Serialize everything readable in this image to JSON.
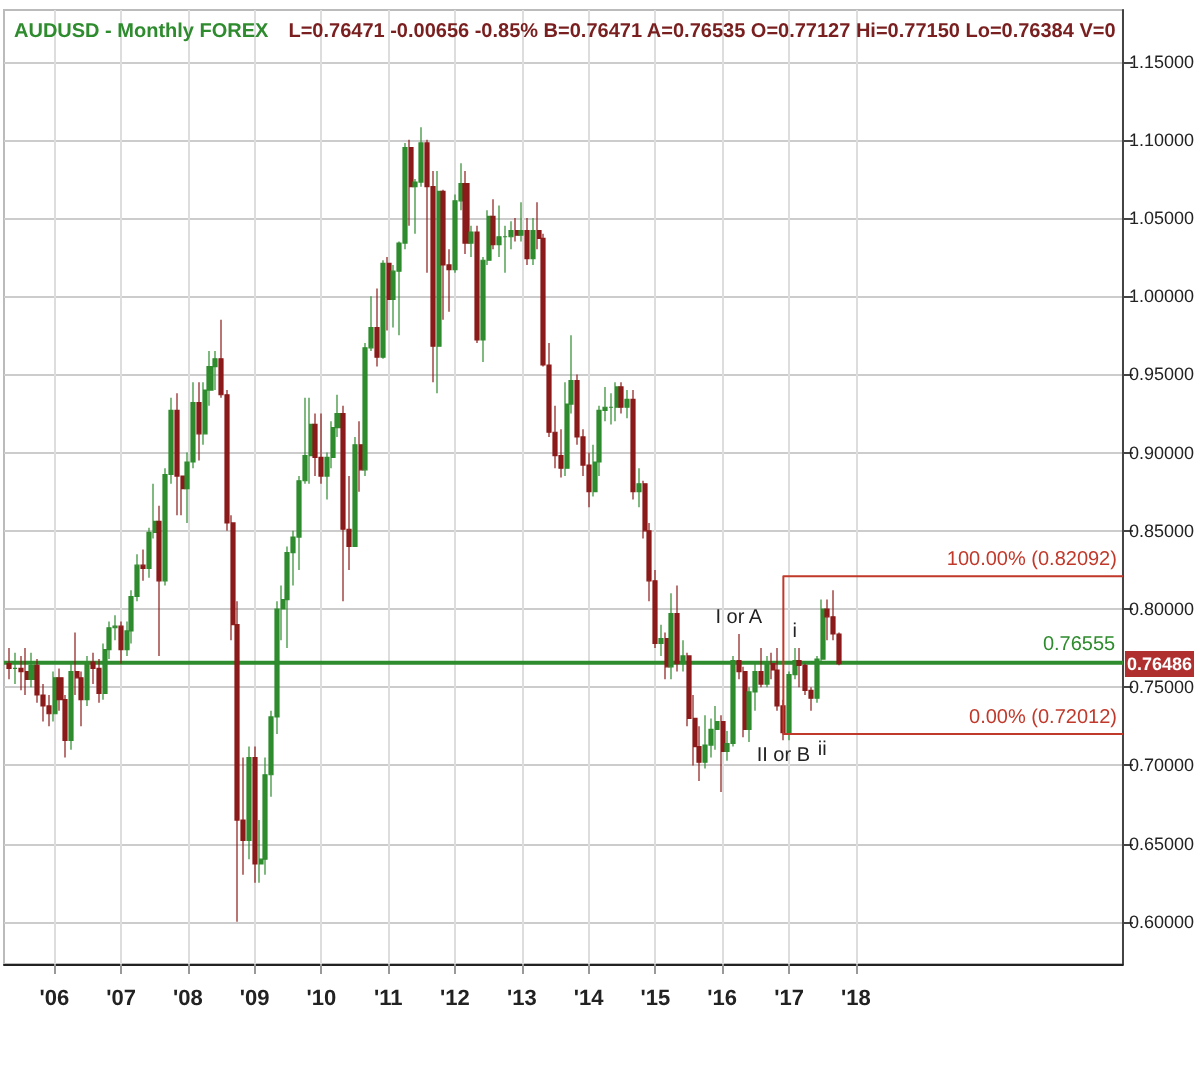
{
  "chart_data": {
    "type": "candlestick",
    "title": "AUDUSD - Monthly FOREX",
    "subtitle": "L=0.76471 -0.00656 -0.85% B=0.76471 A=0.76535 O=0.77127 Hi=0.77150 Lo=0.76384 V=0",
    "xlim": [
      "2005-04",
      "2022-01"
    ],
    "xticks": [
      {
        "value": "2006-01",
        "label": "'06"
      },
      {
        "value": "2007-01",
        "label": "'07"
      },
      {
        "value": "2008-01",
        "label": "'08"
      },
      {
        "value": "2009-01",
        "label": "'09"
      },
      {
        "value": "2010-01",
        "label": "'10"
      },
      {
        "value": "2011-01",
        "label": "'11"
      },
      {
        "value": "2012-01",
        "label": "'12"
      },
      {
        "value": "2013-01",
        "label": "'13"
      },
      {
        "value": "2014-01",
        "label": "'14"
      },
      {
        "value": "2015-01",
        "label": "'15"
      },
      {
        "value": "2016-01",
        "label": "'16"
      },
      {
        "value": "2017-01",
        "label": "'17"
      },
      {
        "value": "2018-01",
        "label": "'18"
      }
    ],
    "ylim": [
      0.573,
      1.183
    ],
    "yticks": [
      {
        "value": 0.6,
        "label": "0.60000"
      },
      {
        "value": 0.65,
        "label": "0.65000"
      },
      {
        "value": 0.7,
        "label": "0.70000"
      },
      {
        "value": 0.75,
        "label": "0.75000"
      },
      {
        "value": 0.8,
        "label": "0.80000"
      },
      {
        "value": 0.85,
        "label": "0.85000"
      },
      {
        "value": 0.9,
        "label": "0.90000"
      },
      {
        "value": 0.95,
        "label": "0.95000"
      },
      {
        "value": 1.0,
        "label": "1.00000"
      },
      {
        "value": 1.05,
        "label": "1.05000"
      },
      {
        "value": 1.1,
        "label": "1.10000"
      },
      {
        "value": 1.15,
        "label": "1.15000"
      }
    ],
    "grid": true,
    "ref_lines": [
      {
        "axis": "y",
        "value": 0.76555,
        "label": "0.76555",
        "color": "#2e8b2e"
      }
    ],
    "annotations": [
      {
        "text": "100.00% (0.82092)",
        "x": "2022-01",
        "y": 0.82092
      },
      {
        "text": "0.00% (0.72012)",
        "x": "2022-01",
        "y": 0.72012
      },
      {
        "text": "I or A",
        "x": "2016-04",
        "y": 0.784
      },
      {
        "text": "II or B",
        "x": "2016-12",
        "y": 0.716
      },
      {
        "text": "i",
        "x": "2017-02",
        "y": 0.775
      },
      {
        "text": "ii",
        "x": "2017-07",
        "y": 0.72012
      },
      {
        "text": "0.76486",
        "y": 0.76486
      }
    ],
    "series": [
      {
        "x": [
          "2005-05",
          "2005-06",
          "2005-07",
          "2005-08",
          "2005-09",
          "2005-10",
          "2005-11",
          "2005-12",
          "2006-01",
          "2006-02",
          "2006-03",
          "2006-04",
          "2006-05",
          "2006-06",
          "2006-07",
          "2006-08",
          "2006-09",
          "2006-10",
          "2006-11",
          "2006-12",
          "2007-01",
          "2007-02",
          "2007-03",
          "2007-04",
          "2007-05",
          "2007-06",
          "2007-07",
          "2007-08",
          "2007-09",
          "2007-10",
          "2007-11",
          "2007-12",
          "2008-01",
          "2008-02",
          "2008-03",
          "2008-04",
          "2008-05",
          "2008-06",
          "2008-07",
          "2008-08",
          "2008-09",
          "2008-10",
          "2008-11",
          "2008-12",
          "2009-01",
          "2009-02",
          "2009-03",
          "2009-04",
          "2009-05",
          "2009-06",
          "2009-07",
          "2009-08",
          "2009-09",
          "2009-10",
          "2009-11",
          "2009-12",
          "2010-01",
          "2010-02",
          "2010-03",
          "2010-04",
          "2010-05",
          "2010-06",
          "2010-07",
          "2010-08",
          "2010-09",
          "2010-10",
          "2010-11",
          "2010-12",
          "2011-01",
          "2011-02",
          "2011-03",
          "2011-04",
          "2011-05",
          "2011-06",
          "2011-07",
          "2011-08",
          "2011-09",
          "2011-10",
          "2011-11",
          "2011-12",
          "2012-01",
          "2012-02",
          "2012-03",
          "2012-04",
          "2012-05",
          "2012-06",
          "2012-07",
          "2012-08",
          "2012-09",
          "2012-10",
          "2012-11",
          "2012-12",
          "2013-01",
          "2013-02",
          "2013-03",
          "2013-04",
          "2013-05",
          "2013-06",
          "2013-07",
          "2013-08",
          "2013-09",
          "2013-10",
          "2013-11",
          "2013-12",
          "2014-01",
          "2014-02",
          "2014-03",
          "2014-04",
          "2014-05",
          "2014-06",
          "2014-07",
          "2014-08",
          "2014-09",
          "2014-10",
          "2014-11",
          "2014-12",
          "2015-01",
          "2015-02",
          "2015-03",
          "2015-04",
          "2015-05",
          "2015-06",
          "2015-07",
          "2015-08",
          "2015-09",
          "2015-10",
          "2015-11",
          "2015-12",
          "2016-01",
          "2016-02",
          "2016-03",
          "2016-04",
          "2016-05",
          "2016-06",
          "2016-07",
          "2016-08",
          "2016-09",
          "2016-10",
          "2016-11",
          "2016-12",
          "2017-01",
          "2017-02",
          "2017-03",
          "2017-04",
          "2017-05",
          "2017-06",
          "2017-07",
          "2017-08",
          "2017-09",
          "2017-10"
        ],
        "ohlc": [
          [
            0.765,
            0.775,
            0.755,
            0.762
          ],
          [
            0.762,
            0.772,
            0.752,
            0.762
          ],
          [
            0.762,
            0.77,
            0.748,
            0.76
          ],
          [
            0.76,
            0.775,
            0.745,
            0.755
          ],
          [
            0.755,
            0.772,
            0.75,
            0.764
          ],
          [
            0.764,
            0.768,
            0.74,
            0.745
          ],
          [
            0.745,
            0.752,
            0.728,
            0.738
          ],
          [
            0.738,
            0.745,
            0.725,
            0.733
          ],
          [
            0.733,
            0.76,
            0.728,
            0.756
          ],
          [
            0.756,
            0.762,
            0.735,
            0.742
          ],
          [
            0.742,
            0.745,
            0.705,
            0.716
          ],
          [
            0.716,
            0.765,
            0.71,
            0.76
          ],
          [
            0.76,
            0.785,
            0.745,
            0.756
          ],
          [
            0.756,
            0.76,
            0.725,
            0.742
          ],
          [
            0.742,
            0.77,
            0.738,
            0.766
          ],
          [
            0.766,
            0.772,
            0.752,
            0.762
          ],
          [
            0.762,
            0.768,
            0.74,
            0.746
          ],
          [
            0.746,
            0.778,
            0.742,
            0.774
          ],
          [
            0.774,
            0.792,
            0.768,
            0.788
          ],
          [
            0.788,
            0.796,
            0.78,
            0.789
          ],
          [
            0.789,
            0.792,
            0.765,
            0.774
          ],
          [
            0.774,
            0.792,
            0.77,
            0.786
          ],
          [
            0.786,
            0.812,
            0.778,
            0.808
          ],
          [
            0.808,
            0.835,
            0.805,
            0.828
          ],
          [
            0.828,
            0.838,
            0.818,
            0.826
          ],
          [
            0.826,
            0.852,
            0.82,
            0.849
          ],
          [
            0.849,
            0.88,
            0.845,
            0.856
          ],
          [
            0.856,
            0.866,
            0.77,
            0.818
          ],
          [
            0.818,
            0.89,
            0.815,
            0.886
          ],
          [
            0.886,
            0.935,
            0.88,
            0.927
          ],
          [
            0.927,
            0.938,
            0.86,
            0.885
          ],
          [
            0.885,
            0.885,
            0.86,
            0.877
          ],
          [
            0.877,
            0.9,
            0.855,
            0.894
          ],
          [
            0.894,
            0.945,
            0.89,
            0.932
          ],
          [
            0.932,
            0.945,
            0.895,
            0.912
          ],
          [
            0.912,
            0.945,
            0.905,
            0.94
          ],
          [
            0.94,
            0.965,
            0.93,
            0.955
          ],
          [
            0.955,
            0.965,
            0.94,
            0.96
          ],
          [
            0.96,
            0.985,
            0.935,
            0.937
          ],
          [
            0.937,
            0.94,
            0.85,
            0.855
          ],
          [
            0.855,
            0.86,
            0.78,
            0.79
          ],
          [
            0.79,
            0.805,
            0.6,
            0.665
          ],
          [
            0.665,
            0.705,
            0.63,
            0.652
          ],
          [
            0.652,
            0.712,
            0.64,
            0.705
          ],
          [
            0.705,
            0.712,
            0.625,
            0.637
          ],
          [
            0.637,
            0.665,
            0.625,
            0.64
          ],
          [
            0.64,
            0.705,
            0.63,
            0.694
          ],
          [
            0.694,
            0.735,
            0.68,
            0.731
          ],
          [
            0.731,
            0.805,
            0.72,
            0.8
          ],
          [
            0.8,
            0.815,
            0.78,
            0.806
          ],
          [
            0.806,
            0.84,
            0.775,
            0.836
          ],
          [
            0.836,
            0.85,
            0.815,
            0.846
          ],
          [
            0.846,
            0.885,
            0.825,
            0.882
          ],
          [
            0.882,
            0.935,
            0.88,
            0.898
          ],
          [
            0.898,
            0.935,
            0.88,
            0.918
          ],
          [
            0.918,
            0.925,
            0.885,
            0.897
          ],
          [
            0.897,
            0.925,
            0.88,
            0.885
          ],
          [
            0.885,
            0.9,
            0.87,
            0.897
          ],
          [
            0.897,
            0.92,
            0.89,
            0.916
          ],
          [
            0.916,
            0.937,
            0.91,
            0.925
          ],
          [
            0.925,
            0.93,
            0.805,
            0.851
          ],
          [
            0.851,
            0.885,
            0.825,
            0.84
          ],
          [
            0.84,
            0.91,
            0.84,
            0.905
          ],
          [
            0.905,
            0.92,
            0.875,
            0.889
          ],
          [
            0.889,
            0.97,
            0.885,
            0.967
          ],
          [
            0.967,
            1.0,
            0.965,
            0.98
          ],
          [
            0.98,
            1.005,
            0.955,
            0.961
          ],
          [
            0.961,
            1.023,
            0.96,
            1.021
          ],
          [
            1.021,
            1.025,
            0.978,
            0.998
          ],
          [
            0.998,
            1.02,
            0.98,
            1.016
          ],
          [
            1.016,
            1.035,
            0.975,
            1.034
          ],
          [
            1.034,
            1.098,
            1.03,
            1.095
          ],
          [
            1.095,
            1.1,
            1.045,
            1.07
          ],
          [
            1.07,
            1.075,
            1.04,
            1.073
          ],
          [
            1.073,
            1.108,
            1.07,
            1.098
          ],
          [
            1.098,
            1.1,
            1.015,
            1.07
          ],
          [
            1.07,
            1.08,
            0.945,
            0.968
          ],
          [
            0.968,
            1.08,
            0.938,
            1.067
          ],
          [
            1.067,
            1.068,
            0.985,
            1.02
          ],
          [
            1.02,
            1.03,
            0.99,
            1.017
          ],
          [
            1.017,
            1.065,
            1.015,
            1.061
          ],
          [
            1.061,
            1.085,
            1.055,
            1.072
          ],
          [
            1.072,
            1.08,
            1.027,
            1.034
          ],
          [
            1.034,
            1.045,
            1.025,
            1.041
          ],
          [
            1.041,
            1.045,
            0.97,
            0.972
          ],
          [
            0.972,
            1.025,
            0.958,
            1.023
          ],
          [
            1.023,
            1.055,
            1.02,
            1.051
          ],
          [
            1.051,
            1.062,
            1.03,
            1.033
          ],
          [
            1.033,
            1.058,
            1.025,
            1.038
          ],
          [
            1.038,
            1.045,
            1.015,
            1.038
          ],
          [
            1.038,
            1.048,
            1.03,
            1.042
          ],
          [
            1.042,
            1.05,
            1.035,
            1.039
          ],
          [
            1.039,
            1.06,
            1.035,
            1.042
          ],
          [
            1.042,
            1.05,
            1.02,
            1.024
          ],
          [
            1.024,
            1.05,
            1.02,
            1.042
          ],
          [
            1.042,
            1.06,
            1.03,
            1.037
          ],
          [
            1.037,
            1.04,
            0.955,
            0.956
          ],
          [
            0.956,
            0.97,
            0.91,
            0.913
          ],
          [
            0.913,
            0.93,
            0.89,
            0.898
          ],
          [
            0.898,
            0.915,
            0.884,
            0.89
          ],
          [
            0.89,
            0.945,
            0.885,
            0.931
          ],
          [
            0.931,
            0.975,
            0.925,
            0.946
          ],
          [
            0.946,
            0.95,
            0.905,
            0.91
          ],
          [
            0.91,
            0.915,
            0.885,
            0.892
          ],
          [
            0.892,
            0.9,
            0.865,
            0.875
          ],
          [
            0.875,
            0.905,
            0.872,
            0.894
          ],
          [
            0.894,
            0.93,
            0.885,
            0.927
          ],
          [
            0.927,
            0.942,
            0.92,
            0.929
          ],
          [
            0.929,
            0.938,
            0.918,
            0.929
          ],
          [
            0.929,
            0.945,
            0.92,
            0.942
          ],
          [
            0.942,
            0.945,
            0.925,
            0.929
          ],
          [
            0.929,
            0.94,
            0.922,
            0.934
          ],
          [
            0.934,
            0.94,
            0.87,
            0.875
          ],
          [
            0.875,
            0.89,
            0.865,
            0.88
          ],
          [
            0.88,
            0.882,
            0.845,
            0.85
          ],
          [
            0.85,
            0.855,
            0.805,
            0.818
          ],
          [
            0.818,
            0.825,
            0.775,
            0.778
          ],
          [
            0.778,
            0.79,
            0.77,
            0.781
          ],
          [
            0.781,
            0.785,
            0.755,
            0.763
          ],
          [
            0.763,
            0.81,
            0.755,
            0.797
          ],
          [
            0.797,
            0.815,
            0.76,
            0.765
          ],
          [
            0.765,
            0.78,
            0.76,
            0.77
          ],
          [
            0.77,
            0.772,
            0.725,
            0.73
          ],
          [
            0.73,
            0.745,
            0.7,
            0.712
          ],
          [
            0.712,
            0.725,
            0.69,
            0.702
          ],
          [
            0.702,
            0.732,
            0.698,
            0.713
          ],
          [
            0.713,
            0.73,
            0.705,
            0.723
          ],
          [
            0.723,
            0.738,
            0.71,
            0.728
          ],
          [
            0.728,
            0.732,
            0.683,
            0.709
          ],
          [
            0.709,
            0.722,
            0.703,
            0.714
          ],
          [
            0.714,
            0.77,
            0.712,
            0.767
          ],
          [
            0.767,
            0.784,
            0.755,
            0.76
          ],
          [
            0.76,
            0.763,
            0.718,
            0.723
          ],
          [
            0.723,
            0.75,
            0.715,
            0.747
          ],
          [
            0.747,
            0.765,
            0.735,
            0.76
          ],
          [
            0.76,
            0.775,
            0.75,
            0.752
          ],
          [
            0.752,
            0.77,
            0.75,
            0.765
          ],
          [
            0.765,
            0.772,
            0.755,
            0.761
          ],
          [
            0.761,
            0.775,
            0.735,
            0.738
          ],
          [
            0.738,
            0.742,
            0.716,
            0.721
          ],
          [
            0.721,
            0.76,
            0.716,
            0.758
          ],
          [
            0.758,
            0.775,
            0.755,
            0.767
          ],
          [
            0.767,
            0.775,
            0.75,
            0.764
          ],
          [
            0.764,
            0.765,
            0.745,
            0.748
          ],
          [
            0.748,
            0.75,
            0.735,
            0.743
          ],
          [
            0.743,
            0.77,
            0.74,
            0.768
          ],
          [
            0.768,
            0.806,
            0.765,
            0.8
          ],
          [
            0.8,
            0.806,
            0.78,
            0.795
          ],
          [
            0.795,
            0.812,
            0.78,
            0.784
          ],
          [
            0.784,
            0.785,
            0.764,
            0.765
          ]
        ]
      },
      {
        "type": "line",
        "color": "#c0392b",
        "x": [
          "2022-01",
          "2016-12",
          "2016-12",
          "2022-01"
        ],
        "values": [
          0.82092,
          0.82092,
          0.72012,
          0.72012
        ]
      }
    ]
  }
}
